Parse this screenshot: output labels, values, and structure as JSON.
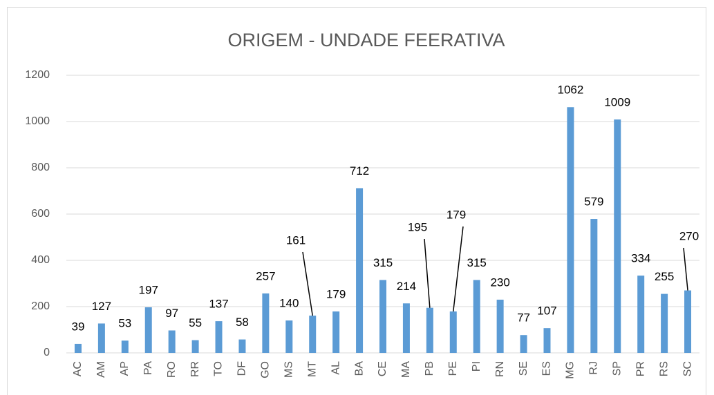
{
  "chart_data": {
    "type": "bar",
    "title": "ORIGEM - UNDADE FEERATIVA",
    "categories": [
      "AC",
      "AM",
      "AP",
      "PA",
      "RO",
      "RR",
      "TO",
      "DF",
      "GO",
      "MS",
      "MT",
      "AL",
      "BA",
      "CE",
      "MA",
      "PB",
      "PE",
      "PI",
      "RN",
      "SE",
      "ES",
      "MG",
      "RJ",
      "SP",
      "PR",
      "RS",
      "SC"
    ],
    "values": [
      39,
      127,
      53,
      197,
      97,
      55,
      137,
      58,
      257,
      140,
      161,
      179,
      712,
      315,
      214,
      195,
      179,
      315,
      230,
      77,
      107,
      1062,
      579,
      1009,
      334,
      255,
      270
    ],
    "color": "#5b9bd5",
    "ylim": [
      0,
      1200
    ],
    "yticks": [
      0,
      200,
      400,
      600,
      800,
      1000,
      1200
    ],
    "grid": true
  }
}
